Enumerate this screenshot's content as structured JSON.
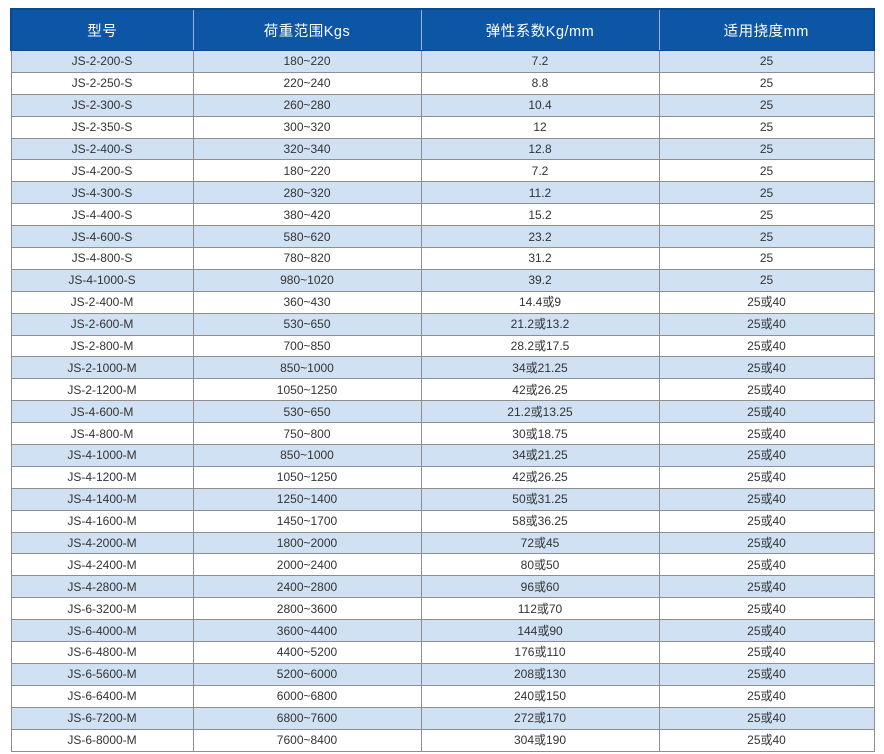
{
  "table": {
    "columns": [
      "型号",
      "荷重范围Kgs",
      "弹性系数Kg/mm",
      "适用挠度mm"
    ],
    "rows": [
      [
        "JS-2-200-S",
        "180~220",
        "7.2",
        "25"
      ],
      [
        "JS-2-250-S",
        "220~240",
        "8.8",
        "25"
      ],
      [
        "JS-2-300-S",
        "260~280",
        "10.4",
        "25"
      ],
      [
        "JS-2-350-S",
        "300~320",
        "12",
        "25"
      ],
      [
        "JS-2-400-S",
        "320~340",
        "12.8",
        "25"
      ],
      [
        "JS-4-200-S",
        "180~220",
        "7.2",
        "25"
      ],
      [
        "JS-4-300-S",
        "280~320",
        "11.2",
        "25"
      ],
      [
        "JS-4-400-S",
        "380~420",
        "15.2",
        "25"
      ],
      [
        "JS-4-600-S",
        "580~620",
        "23.2",
        "25"
      ],
      [
        "JS-4-800-S",
        "780~820",
        "31.2",
        "25"
      ],
      [
        "JS-4-1000-S",
        "980~1020",
        "39.2",
        "25"
      ],
      [
        "JS-2-400-M",
        "360~430",
        "14.4或9",
        "25或40"
      ],
      [
        "JS-2-600-M",
        "530~650",
        "21.2或13.2",
        "25或40"
      ],
      [
        "JS-2-800-M",
        "700~850",
        "28.2或17.5",
        "25或40"
      ],
      [
        "JS-2-1000-M",
        "850~1000",
        "34或21.25",
        "25或40"
      ],
      [
        "JS-2-1200-M",
        "1050~1250",
        "42或26.25",
        "25或40"
      ],
      [
        "JS-4-600-M",
        "530~650",
        "21.2或13.25",
        "25或40"
      ],
      [
        "JS-4-800-M",
        "750~800",
        "30或18.75",
        "25或40"
      ],
      [
        "JS-4-1000-M",
        "850~1000",
        "34或21.25",
        "25或40"
      ],
      [
        "JS-4-1200-M",
        "1050~1250",
        "42或26.25",
        "25或40"
      ],
      [
        "JS-4-1400-M",
        "1250~1400",
        "50或31.25",
        "25或40"
      ],
      [
        "JS-4-1600-M",
        "1450~1700",
        "58或36.25",
        "25或40"
      ],
      [
        "JS-4-2000-M",
        "1800~2000",
        "72或45",
        "25或40"
      ],
      [
        "JS-4-2400-M",
        "2000~2400",
        "80或50",
        "25或40"
      ],
      [
        "JS-4-2800-M",
        "2400~2800",
        "96或60",
        "25或40"
      ],
      [
        "JS-6-3200-M",
        "2800~3600",
        "112或70",
        "25或40"
      ],
      [
        "JS-6-4000-M",
        "3600~4400",
        "144或90",
        "25或40"
      ],
      [
        "JS-6-4800-M",
        "4400~5200",
        "176或110",
        "25或40"
      ],
      [
        "JS-6-5600-M",
        "5200~6000",
        "208或130",
        "25或40"
      ],
      [
        "JS-6-6400-M",
        "6000~6800",
        "240或150",
        "25或40"
      ],
      [
        "JS-6-7200-M",
        "6800~7600",
        "272或170",
        "25或40"
      ],
      [
        "JS-6-8000-M",
        "7600~8400",
        "304或190",
        "25或40"
      ]
    ]
  },
  "colors": {
    "header_bg": "#0d56a6",
    "header_text": "#ffffff",
    "header_divider": "#9cb4da",
    "header_edge": "#0a4a92",
    "row_alt_bg": "#cfe1f3",
    "row_bg": "#ffffff",
    "grid_line": "#8e8e8e",
    "cell_text": "#333333"
  }
}
